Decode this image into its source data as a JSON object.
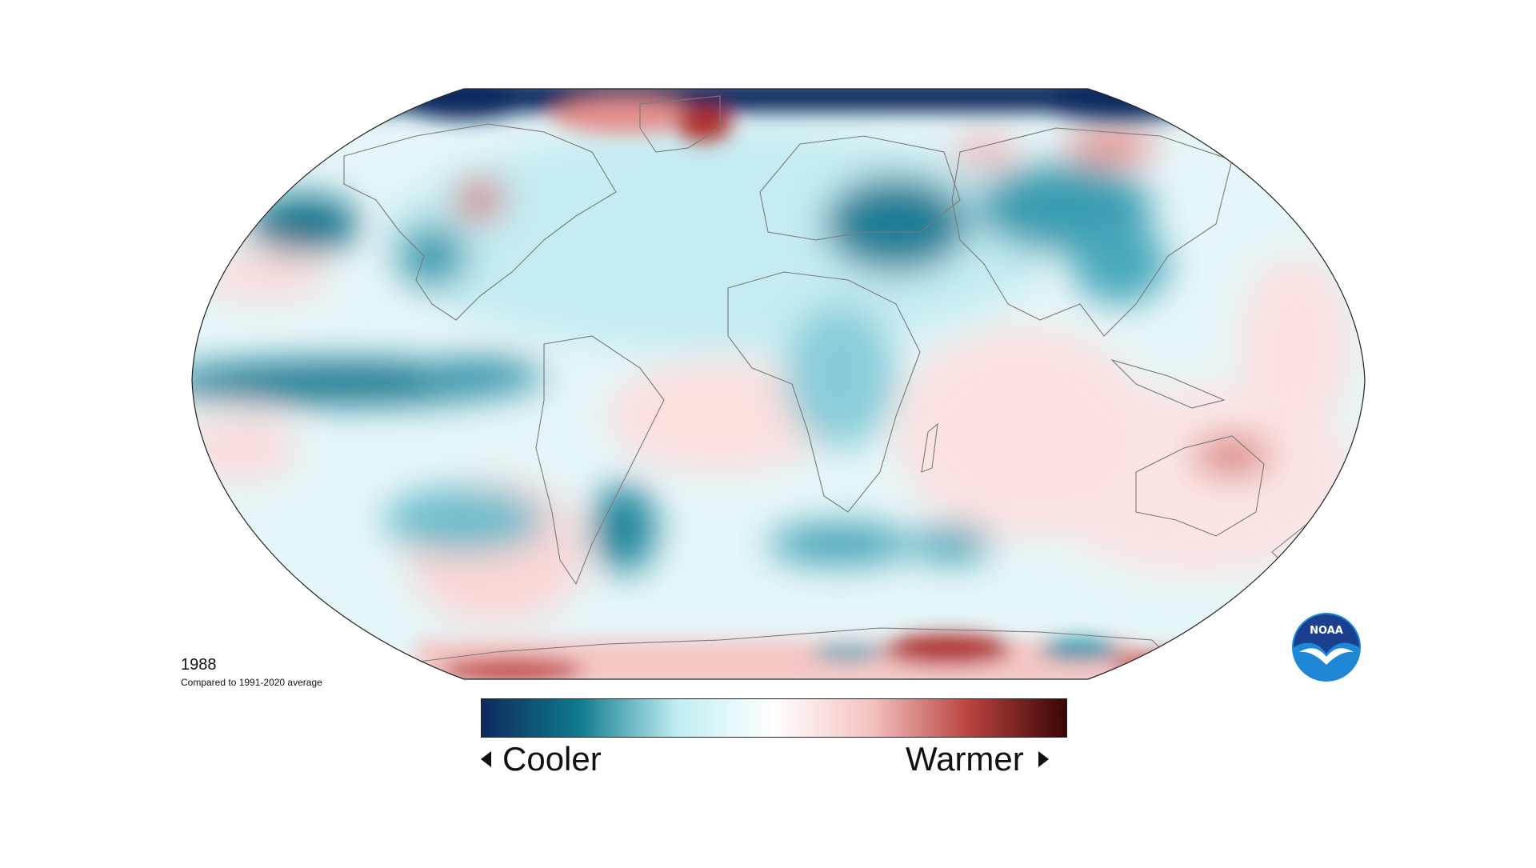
{
  "map": {
    "year": "1988",
    "comparison": "Compared to 1991-2020 average"
  },
  "legend": {
    "cooler_label": "Cooler",
    "warmer_label": "Warmer",
    "colors": [
      "#0d2a5e",
      "#0f7a8e",
      "#bfeef2",
      "#ffffff",
      "#f4c2c0",
      "#b8433f",
      "#3a0505"
    ]
  },
  "logo": {
    "text": "NOAA",
    "colors": [
      "#1a3f8f",
      "#1e88d6",
      "#ffffff"
    ]
  },
  "palette": {
    "cool_strong": "#0b6680",
    "cool_mid": "#3aa3b6",
    "cool_light": "#a8dde5",
    "neutral": "#ffffff",
    "warm_light": "#f7d1d0",
    "warm_mid": "#d9726f",
    "warm_strong": "#a62a28",
    "polar_cool": "#0d2a5e"
  },
  "icons": [
    "left-triangle-icon",
    "right-triangle-icon",
    "noaa-logo-icon"
  ]
}
